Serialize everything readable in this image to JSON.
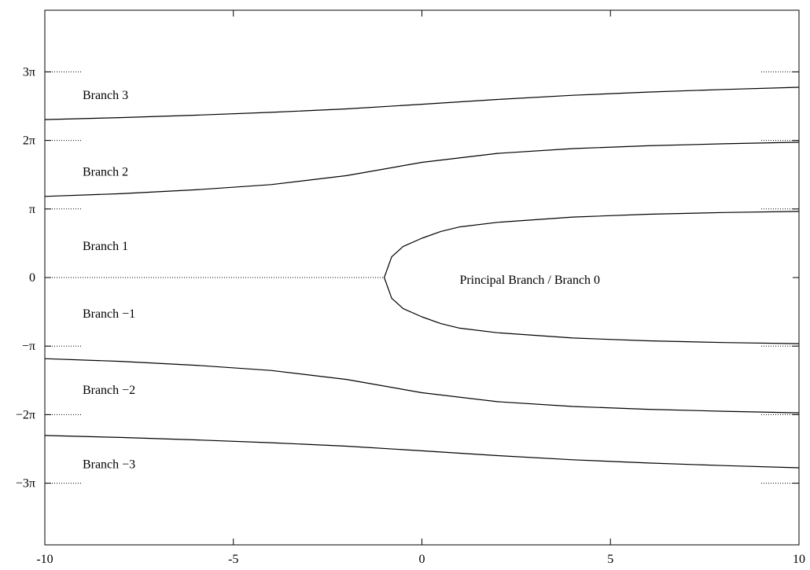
{
  "chart_data": {
    "type": "line",
    "title": "",
    "xlabel": "",
    "ylabel": "",
    "xlim": [
      -10,
      10
    ],
    "ylim": [
      -12.25,
      12.25
    ],
    "x_ticks": [
      {
        "value": -10,
        "label": "-10"
      },
      {
        "value": -5,
        "label": "-5"
      },
      {
        "value": 0,
        "label": "0"
      },
      {
        "value": 5,
        "label": "5"
      },
      {
        "value": 10,
        "label": "10"
      }
    ],
    "y_ticks": [
      {
        "value": 9.42478,
        "label": "3π"
      },
      {
        "value": 6.28319,
        "label": "2π"
      },
      {
        "value": 3.14159,
        "label": "π"
      },
      {
        "value": 0,
        "label": "0"
      },
      {
        "value": -3.14159,
        "label": "−π"
      },
      {
        "value": -6.28319,
        "label": "−2π"
      },
      {
        "value": -9.42478,
        "label": "−3π"
      }
    ],
    "series": [
      {
        "x": [
          -10,
          -8,
          -6,
          -4,
          -2,
          0,
          2,
          4,
          6,
          8,
          10
        ],
        "y": [
          7.24,
          7.33,
          7.44,
          7.57,
          7.73,
          7.94,
          8.16,
          8.35,
          8.5,
          8.62,
          8.72
        ]
      },
      {
        "x": [
          -10,
          -8,
          -6,
          -4,
          -2,
          0,
          2,
          4,
          6,
          8,
          10
        ],
        "y": [
          3.72,
          3.84,
          4.02,
          4.26,
          4.67,
          5.28,
          5.69,
          5.91,
          6.04,
          6.13,
          6.2
        ]
      },
      {
        "x": [
          10,
          8,
          6,
          4,
          2,
          1,
          0.5,
          0,
          -0.5,
          -0.8,
          -1,
          -0.8,
          -0.5,
          0,
          0.5,
          1,
          2,
          4,
          6,
          8,
          10
        ],
        "y": [
          3.03,
          2.98,
          2.9,
          2.77,
          2.53,
          2.32,
          2.11,
          1.8,
          1.42,
          0.95,
          0,
          -0.95,
          -1.42,
          -1.8,
          -2.11,
          -2.32,
          -2.53,
          -2.77,
          -2.9,
          -2.98,
          -3.03
        ]
      },
      {
        "x": [
          -10,
          -8,
          -6,
          -4,
          -2,
          0,
          2,
          4,
          6,
          8,
          10
        ],
        "y": [
          -3.72,
          -3.84,
          -4.02,
          -4.26,
          -4.67,
          -5.28,
          -5.69,
          -5.91,
          -6.04,
          -6.13,
          -6.2
        ]
      },
      {
        "x": [
          -10,
          -8,
          -6,
          -4,
          -2,
          0,
          2,
          4,
          6,
          8,
          10
        ],
        "y": [
          -7.24,
          -7.33,
          -7.44,
          -7.57,
          -7.73,
          -7.94,
          -8.16,
          -8.35,
          -8.5,
          -8.62,
          -8.72
        ]
      }
    ],
    "reference_lines": [
      {
        "x": [
          -10,
          -9
        ],
        "y": [
          9.42478,
          9.42478
        ]
      },
      {
        "x": [
          -10,
          -9
        ],
        "y": [
          6.28319,
          6.28319
        ]
      },
      {
        "x": [
          -10,
          -9
        ],
        "y": [
          3.14159,
          3.14159
        ]
      },
      {
        "x": [
          -10,
          -1
        ],
        "y": [
          0,
          0
        ]
      },
      {
        "x": [
          -10,
          -9
        ],
        "y": [
          -3.14159,
          -3.14159
        ]
      },
      {
        "x": [
          -10,
          -9
        ],
        "y": [
          -6.28319,
          -6.28319
        ]
      },
      {
        "x": [
          -10,
          -9
        ],
        "y": [
          -9.42478,
          -9.42478
        ]
      },
      {
        "x": [
          9,
          10
        ],
        "y": [
          9.42478,
          9.42478
        ]
      },
      {
        "x": [
          9,
          10
        ],
        "y": [
          6.28319,
          6.28319
        ]
      },
      {
        "x": [
          9,
          10
        ],
        "y": [
          3.14159,
          3.14159
        ]
      },
      {
        "x": [
          9,
          10
        ],
        "y": [
          -3.14159,
          -3.14159
        ]
      },
      {
        "x": [
          9,
          10
        ],
        "y": [
          -6.28319,
          -6.28319
        ]
      },
      {
        "x": [
          9,
          10
        ],
        "y": [
          -9.42478,
          -9.42478
        ]
      }
    ],
    "annotations": [
      {
        "text": "Branch 3",
        "x": -9.0,
        "y": 8.35
      },
      {
        "text": "Branch 2",
        "x": -9.0,
        "y": 4.85
      },
      {
        "text": "Branch 1",
        "x": -9.0,
        "y": 1.45
      },
      {
        "text": "Principal Branch / Branch 0",
        "x": 1.0,
        "y": -0.1
      },
      {
        "text": "Branch −1",
        "x": -9.0,
        "y": -1.65
      },
      {
        "text": "Branch −2",
        "x": -9.0,
        "y": -5.15
      },
      {
        "text": "Branch −3",
        "x": -9.0,
        "y": -8.55
      }
    ],
    "grid": false,
    "legend": "none"
  }
}
